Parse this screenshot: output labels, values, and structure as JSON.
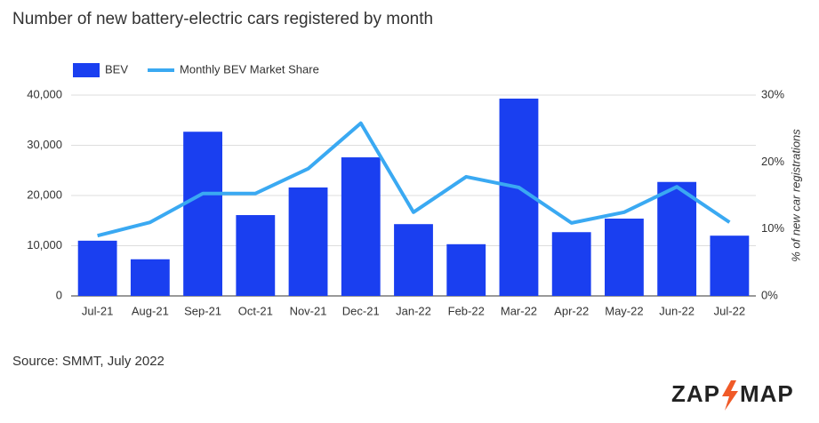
{
  "chart_data": {
    "type": "bar_line",
    "title": "Number of new battery-electric cars registered by month",
    "categories": [
      "Jul-21",
      "Aug-21",
      "Sep-21",
      "Oct-21",
      "Nov-21",
      "Dec-21",
      "Jan-22",
      "Feb-22",
      "Mar-22",
      "Apr-22",
      "May-22",
      "Jun-22",
      "Jul-22"
    ],
    "series": [
      {
        "name": "BEV",
        "color": "#1a3ff0",
        "type": "bar",
        "values": [
          11000,
          7300,
          32700,
          16100,
          21600,
          27600,
          14300,
          10300,
          39300,
          12700,
          15400,
          22700,
          12000
        ]
      },
      {
        "name": "Monthly BEV Market Share",
        "color": "#3aa9f2",
        "type": "line",
        "axis": "y2",
        "values": [
          9.0,
          11.0,
          15.3,
          15.3,
          19.0,
          25.8,
          12.5,
          17.8,
          16.2,
          10.9,
          12.5,
          16.3,
          11.0
        ]
      }
    ],
    "ylim": [
      0,
      40000
    ],
    "yticks": [
      0,
      {
        "value": 10000,
        "label": "10,000"
      },
      {
        "value": 20000,
        "label": "20,000"
      },
      {
        "value": 30000,
        "label": "30,000"
      },
      {
        "value": 40000,
        "label": "40,000"
      }
    ],
    "y2lim": [
      0,
      30
    ],
    "y2ticks": [
      {
        "value": 0,
        "label": "0%"
      },
      {
        "value": 10,
        "label": "10%"
      },
      {
        "value": 20,
        "label": "20%"
      },
      {
        "value": 30,
        "label": "30%"
      }
    ],
    "y2label": "% of new car registrations",
    "grid": true,
    "legend": "top-left",
    "source": "Source: SMMT, July 2022",
    "logo": [
      "ZAP",
      "MAP"
    ]
  }
}
